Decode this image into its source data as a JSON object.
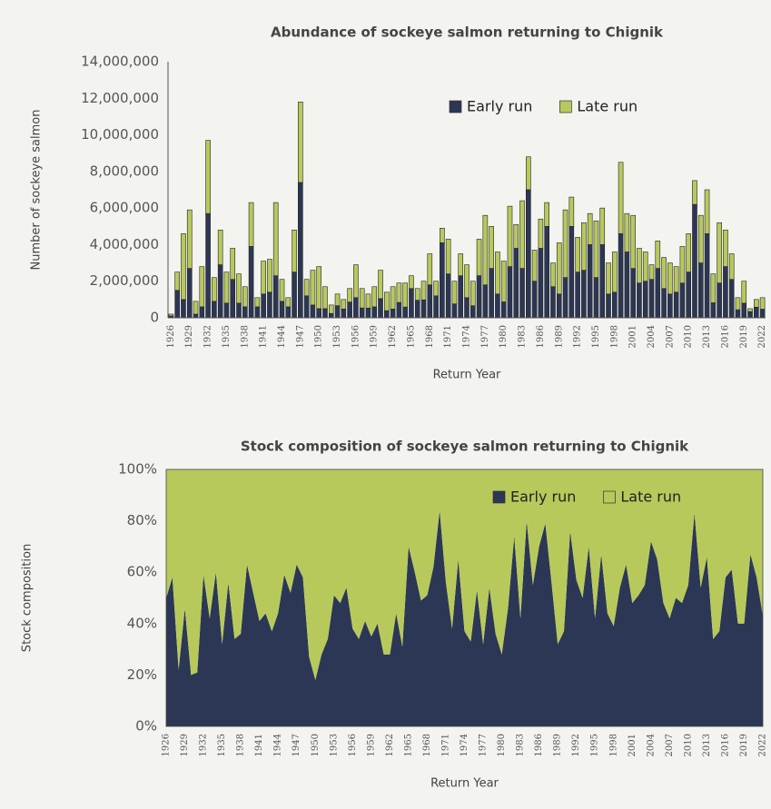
{
  "chart_data": [
    {
      "type": "bar",
      "stacked": true,
      "title": "Abundance of sockeye salmon returning to Chignik",
      "x_label": "Return Year",
      "y_label": "Number of sockeye salmon",
      "categories": [
        "1926",
        null,
        null,
        "1929",
        null,
        null,
        "1932",
        null,
        null,
        "1935",
        null,
        null,
        "1938",
        null,
        null,
        "1941",
        null,
        null,
        "1944",
        null,
        null,
        "1947",
        null,
        null,
        "1950",
        null,
        null,
        "1953",
        null,
        null,
        "1956",
        null,
        null,
        "1959",
        null,
        null,
        "1962",
        null,
        null,
        "1965",
        null,
        null,
        "1968",
        null,
        null,
        "1971",
        null,
        null,
        "1974",
        null,
        null,
        "1977",
        null,
        null,
        "1980",
        null,
        null,
        "1983",
        null,
        null,
        "1986",
        null,
        null,
        "1989",
        null,
        null,
        "1992",
        null,
        null,
        "1995",
        null,
        null,
        "1998",
        null,
        null,
        "2001",
        null,
        null,
        "2004",
        null,
        null,
        "2007",
        null,
        null,
        "2010",
        null,
        null,
        "2013",
        null,
        null,
        "2016",
        null,
        null,
        "2019",
        null,
        null,
        "2022"
      ],
      "series": [
        {
          "name": "Early run",
          "color": "#2c3755",
          "values": [
            100000,
            1500000,
            1000000,
            2700000,
            200000,
            600000,
            5700000,
            900000,
            2900000,
            800000,
            2100000,
            800000,
            600000,
            3900000,
            600000,
            1300000,
            1400000,
            2300000,
            900000,
            600000,
            2500000,
            7400000,
            1200000,
            700000,
            500000,
            500000,
            240000,
            660000,
            480000,
            860000,
            1100000,
            540000,
            530000,
            600000,
            1050000,
            390000,
            480000,
            840000,
            590000,
            1600000,
            960000,
            980000,
            1800000,
            1200000,
            4100000,
            2400000,
            760000,
            2300000,
            1100000,
            660000,
            2300000,
            1800000,
            2700000,
            1300000,
            870000,
            2800000,
            3800000,
            2700000,
            7000000,
            2000000,
            3800000,
            5000000,
            1700000,
            1300000,
            2200000,
            5000000,
            2500000,
            2600000,
            4000000,
            2200000,
            4000000,
            1300000,
            1400000,
            4600000,
            3600000,
            2700000,
            1900000,
            2000000,
            2100000,
            2700000,
            1600000,
            1300000,
            1400000,
            1900000,
            2500000,
            6200000,
            3000000,
            4600000,
            820000,
            1900000,
            2800000,
            2100000,
            440000,
            800000,
            340000,
            580000,
            470000
          ]
        },
        {
          "name": "Late run",
          "color": "#b8c95c",
          "values": [
            100000,
            1000000,
            3600000,
            3200000,
            700000,
            2200000,
            4000000,
            1300000,
            1900000,
            1700000,
            1700000,
            1600000,
            1100000,
            2400000,
            500000,
            1800000,
            1800000,
            4000000,
            1200000,
            500000,
            2300000,
            4400000,
            900000,
            1900000,
            2300000,
            1200000,
            460000,
            640000,
            520000,
            740000,
            1800000,
            1060000,
            770000,
            1100000,
            1550000,
            1010000,
            1220000,
            1060000,
            1310000,
            700000,
            640000,
            1020000,
            1700000,
            800000,
            800000,
            1900000,
            1240000,
            1200000,
            1800000,
            1340000,
            2000000,
            3800000,
            2300000,
            2300000,
            2230000,
            3300000,
            1300000,
            3700000,
            1800000,
            1700000,
            1600000,
            1300000,
            1300000,
            2800000,
            3700000,
            1600000,
            1900000,
            2600000,
            1700000,
            3100000,
            2000000,
            1700000,
            2200000,
            3900000,
            2100000,
            2900000,
            1900000,
            1600000,
            800000,
            1500000,
            1700000,
            1700000,
            1400000,
            2000000,
            2100000,
            1300000,
            2600000,
            2400000,
            1580000,
            3300000,
            2000000,
            1400000,
            660000,
            1200000,
            160000,
            420000,
            630000
          ]
        }
      ],
      "ylim": [
        0,
        14000000
      ],
      "yticks": [
        0,
        {
          "value": 2000000,
          "label": "2,000,000"
        },
        {
          "value": 4000000,
          "label": "4,000,000"
        },
        {
          "value": 6000000,
          "label": "6,000,000"
        },
        {
          "value": 8000000,
          "label": "8,000,000"
        },
        {
          "value": 10000000,
          "label": "10,000,000"
        },
        {
          "value": 12000000,
          "label": "12,000,000"
        },
        {
          "value": 14000000,
          "label": "14,000,000"
        }
      ],
      "legend": "upper right"
    },
    {
      "type": "area",
      "stacked": true,
      "title": "Stock composition of sockeye salmon returning to Chignik",
      "x_label": "Return Year",
      "y_label": "Stock composition",
      "categories": [
        "1926",
        null,
        null,
        "1929",
        null,
        null,
        "1932",
        null,
        null,
        "1935",
        null,
        null,
        "1938",
        null,
        null,
        "1941",
        null,
        null,
        "1944",
        null,
        null,
        "1947",
        null,
        null,
        "1950",
        null,
        null,
        "1953",
        null,
        null,
        "1956",
        null,
        null,
        "1959",
        null,
        null,
        "1962",
        null,
        null,
        "1965",
        null,
        null,
        "1968",
        null,
        null,
        "1971",
        null,
        null,
        "1974",
        null,
        null,
        "1977",
        null,
        null,
        "1980",
        null,
        null,
        "1983",
        null,
        null,
        "1986",
        null,
        null,
        "1989",
        null,
        null,
        "1992",
        null,
        null,
        "1995",
        null,
        null,
        "1998",
        null,
        null,
        "2001",
        null,
        null,
        "2004",
        null,
        null,
        "2007",
        null,
        null,
        "2010",
        null,
        null,
        "2013",
        null,
        null,
        "2016",
        null,
        null,
        "2019",
        null,
        null,
        "2022"
      ],
      "series": [
        {
          "name": "Early run",
          "color": "#2c3755",
          "values": [
            50,
            58,
            22,
            46,
            20,
            21,
            59,
            42,
            60,
            32,
            56,
            34,
            36,
            63,
            52,
            41,
            44,
            37,
            44,
            59,
            52,
            63,
            58,
            27,
            18,
            28,
            34,
            51,
            48,
            54,
            38,
            34,
            41,
            35,
            40,
            28,
            28,
            44,
            31,
            70,
            60,
            49,
            51,
            62,
            84,
            56,
            38,
            65,
            37,
            33,
            53,
            32,
            54,
            36,
            28,
            46,
            74,
            42,
            80,
            55,
            70,
            79,
            56,
            32,
            37,
            76,
            57,
            50,
            70,
            42,
            67,
            44,
            39,
            54,
            63,
            48,
            51,
            55,
            72,
            65,
            48,
            42,
            50,
            48,
            55,
            83,
            54,
            66,
            34,
            37,
            58,
            61,
            40,
            40,
            67,
            58,
            43
          ]
        },
        {
          "name": "Late run",
          "color": "#b8c95c",
          "values": [
            50,
            42,
            78,
            54,
            80,
            79,
            41,
            58,
            40,
            68,
            44,
            66,
            64,
            37,
            48,
            59,
            56,
            63,
            56,
            41,
            48,
            37,
            42,
            73,
            82,
            72,
            66,
            49,
            52,
            46,
            62,
            66,
            59,
            65,
            60,
            72,
            72,
            56,
            69,
            30,
            40,
            51,
            49,
            38,
            16,
            44,
            62,
            35,
            63,
            67,
            47,
            68,
            46,
            64,
            72,
            54,
            26,
            58,
            20,
            45,
            30,
            21,
            44,
            68,
            63,
            24,
            43,
            50,
            30,
            58,
            33,
            56,
            61,
            46,
            37,
            52,
            49,
            45,
            28,
            35,
            52,
            58,
            50,
            52,
            45,
            17,
            46,
            34,
            66,
            63,
            42,
            39,
            60,
            60,
            33,
            42,
            57
          ]
        }
      ],
      "ylim": [
        0,
        100
      ],
      "yticks": [
        {
          "value": 0,
          "label": "0%"
        },
        {
          "value": 20,
          "label": "20%"
        },
        {
          "value": 40,
          "label": "40%"
        },
        {
          "value": 60,
          "label": "60%"
        },
        {
          "value": 80,
          "label": "80%"
        },
        {
          "value": 100,
          "label": "100%"
        }
      ],
      "legend": "upper right"
    }
  ]
}
